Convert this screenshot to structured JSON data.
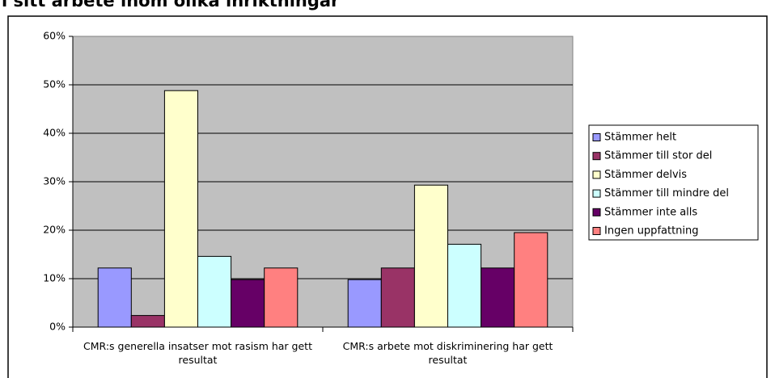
{
  "chart_data": {
    "type": "bar",
    "title": "i sitt arbete inom olika inriktningar",
    "categories": [
      "CMR:s generella insatser mot rasism har gett resultat",
      "CMR:s arbete mot diskriminering har gett resultat"
    ],
    "series": [
      {
        "name": "Stämmer helt",
        "color": "#9999ff",
        "values": [
          12.2,
          9.8
        ]
      },
      {
        "name": "Stämmer till stor del",
        "color": "#993366",
        "values": [
          2.4,
          12.2
        ]
      },
      {
        "name": "Stämmer delvis",
        "color": "#ffffcc",
        "values": [
          48.8,
          29.3
        ]
      },
      {
        "name": "Stämmer till mindre del",
        "color": "#ccffff",
        "values": [
          14.6,
          17.1
        ]
      },
      {
        "name": "Stämmer inte alls",
        "color": "#660066",
        "values": [
          9.8,
          12.2
        ]
      },
      {
        "name": "Ingen uppfattning",
        "color": "#ff8080",
        "values": [
          12.2,
          19.5
        ]
      }
    ],
    "ylim": [
      0,
      60
    ],
    "yticks": [
      {
        "value": 0,
        "label": "0%"
      },
      {
        "value": 10,
        "label": "10%"
      },
      {
        "value": 20,
        "label": "20%"
      },
      {
        "value": 30,
        "label": "30%"
      },
      {
        "value": 40,
        "label": "40%"
      },
      {
        "value": 50,
        "label": "50%"
      },
      {
        "value": 60,
        "label": "60%"
      }
    ],
    "grid": true,
    "legend": "right"
  }
}
